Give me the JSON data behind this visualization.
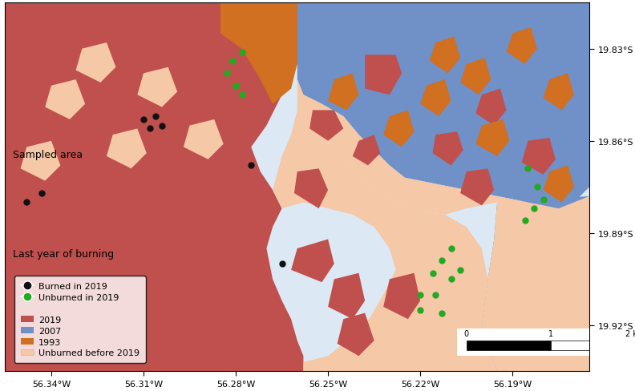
{
  "xlim": [
    -56.355,
    -56.165
  ],
  "ylim": [
    -19.935,
    -19.815
  ],
  "xticks": [
    -56.34,
    -56.31,
    -56.28,
    -56.25,
    -56.22,
    -56.19
  ],
  "yticks": [
    -19.83,
    -19.86,
    -19.89,
    -19.92
  ],
  "colors": {
    "2019": "#c0504d",
    "2007": "#7090c8",
    "1993": "#d07020",
    "unburned": "#f5c8a8",
    "background": "#dce9f5"
  },
  "black_dot_color": "#111111",
  "green_dot_color": "#22aa22",
  "black_dots": [
    [
      -56.31,
      -19.853
    ],
    [
      -56.306,
      -19.852
    ],
    [
      -56.308,
      -19.856
    ],
    [
      -56.304,
      -19.855
    ],
    [
      -56.348,
      -19.88
    ],
    [
      -56.343,
      -19.877
    ],
    [
      -56.275,
      -19.868
    ],
    [
      -56.265,
      -19.9
    ]
  ],
  "green_dots": [
    [
      -56.278,
      -19.831
    ],
    [
      -56.281,
      -19.834
    ],
    [
      -56.283,
      -19.838
    ],
    [
      -56.28,
      -19.842
    ],
    [
      -56.278,
      -19.845
    ],
    [
      -56.185,
      -19.869
    ],
    [
      -56.182,
      -19.875
    ],
    [
      -56.18,
      -19.879
    ],
    [
      -56.183,
      -19.882
    ],
    [
      -56.186,
      -19.886
    ],
    [
      -56.21,
      -19.895
    ],
    [
      -56.213,
      -19.899
    ],
    [
      -56.207,
      -19.902
    ],
    [
      -56.21,
      -19.905
    ],
    [
      -56.216,
      -19.903
    ],
    [
      -56.215,
      -19.91
    ],
    [
      -56.22,
      -19.915
    ],
    [
      -56.213,
      -19.916
    ],
    [
      -56.22,
      -19.91
    ]
  ]
}
